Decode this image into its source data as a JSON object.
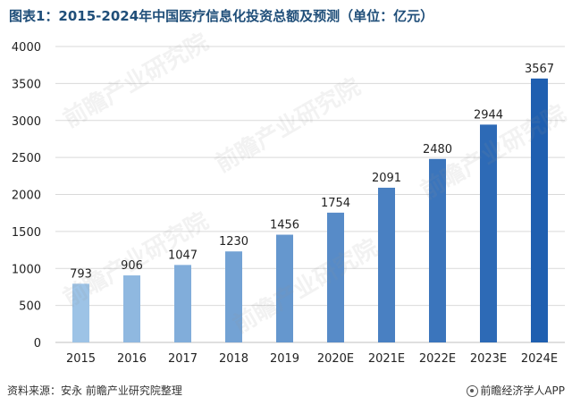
{
  "title": "图表1：2015-2024年中国医疗信息化投资总额及预测（单位：亿元）",
  "footer": {
    "source": "资料来源：安永 前瞻产业研究院整理",
    "brand": "前瞻经济学人APP",
    "brand_icon": "circle-logo-icon"
  },
  "watermark_text": "前瞻产业研究院",
  "colors": {
    "bar_light": "#9dc3e6",
    "bar_dark": "#1f5fb0",
    "title": "#1f4e79",
    "axis_text": "#222222",
    "grid": "#d9d9d9"
  },
  "chart_data": {
    "type": "bar",
    "categories": [
      "2015",
      "2016",
      "2017",
      "2018",
      "2019",
      "2020E",
      "2021E",
      "2022E",
      "2023E",
      "2024E"
    ],
    "values": [
      793,
      906,
      1047,
      1230,
      1456,
      1754,
      2091,
      2480,
      2944,
      3567
    ],
    "ylim": [
      0,
      4000
    ],
    "yticks": [
      0,
      500,
      1000,
      1500,
      2000,
      2500,
      3000,
      3500,
      4000
    ],
    "grid": true,
    "legend": "none",
    "xlabel": "",
    "ylabel": ""
  }
}
